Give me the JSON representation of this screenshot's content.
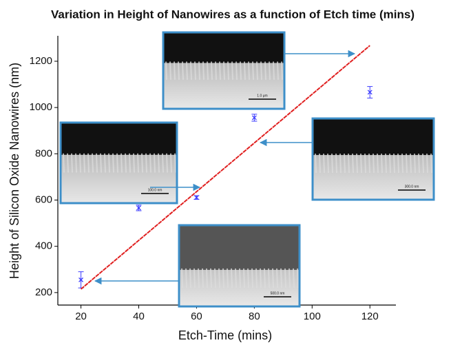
{
  "chart_data": {
    "type": "scatter",
    "title": "Variation in Height of Nanowires as a function of Etch time (mins)",
    "x_label": "Etch-Time (mins)",
    "y_label": "Height of Silicon Oxide Nanowires (nm)",
    "xlim": [
      12,
      129
    ],
    "ylim": [
      146,
      1310
    ],
    "xticks": [
      20,
      40,
      60,
      80,
      100,
      120
    ],
    "yticks": [
      200,
      400,
      600,
      800,
      1000,
      1200
    ],
    "series": [
      {
        "type": "scatter",
        "color": "#3a3aff",
        "x": [
          20,
          40,
          60,
          80,
          120
        ],
        "values": [
          255,
          566,
          611,
          956,
          1066
        ],
        "errors": [
          35,
          12,
          8,
          15,
          25
        ]
      },
      {
        "type": "line",
        "color": "#e02020",
        "x": [
          20,
          120
        ],
        "values": [
          215,
          1268
        ]
      }
    ],
    "annotations": [
      {
        "text": "1.0 μm"
      },
      {
        "text": "100.0 nm"
      },
      {
        "text": "300.0 nm"
      },
      {
        "text": "500.0 nm"
      }
    ]
  }
}
